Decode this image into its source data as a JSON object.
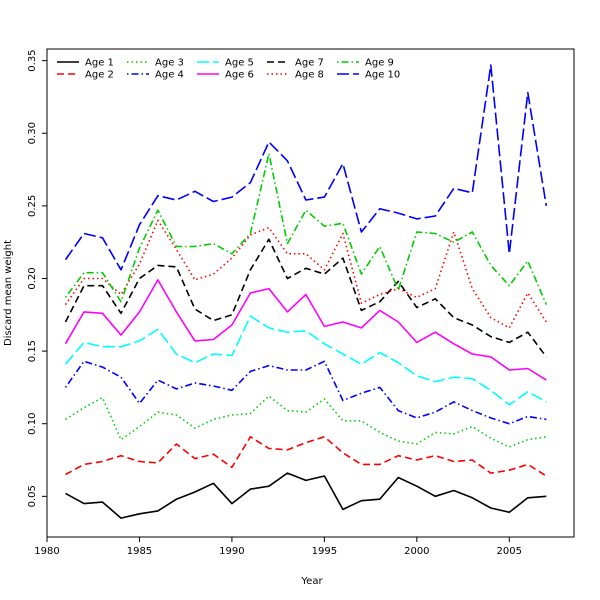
{
  "chart_data": {
    "type": "line",
    "title": "",
    "xlabel": "Year",
    "ylabel": "Discard mean weight",
    "xlim": [
      1980,
      2008.5
    ],
    "ylim": [
      0.022,
      0.358
    ],
    "xticks": [
      "1980",
      "1985",
      "1990",
      "1995",
      "2000",
      "2005"
    ],
    "yticks": [
      "0.05",
      "0.10",
      "0.15",
      "0.20",
      "0.25",
      "0.30",
      "0.35"
    ],
    "legend_placement": "top-left",
    "grid": false,
    "x": [
      1981,
      1982,
      1983,
      1984,
      1985,
      1986,
      1987,
      1988,
      1989,
      1990,
      1991,
      1992,
      1993,
      1994,
      1995,
      1996,
      1997,
      1998,
      1999,
      2000,
      2001,
      2002,
      2003,
      2004,
      2005,
      2006,
      2007
    ],
    "series": [
      {
        "name": "Age 1",
        "color": "#000000",
        "dash": "solid",
        "values": [
          0.052,
          0.045,
          0.046,
          0.035,
          0.038,
          0.04,
          0.048,
          0.053,
          0.059,
          0.045,
          0.055,
          0.057,
          0.066,
          0.061,
          0.064,
          0.041,
          0.047,
          0.048,
          0.063,
          0.057,
          0.05,
          0.054,
          0.049,
          0.042,
          0.039,
          0.049,
          0.05
        ]
      },
      {
        "name": "Age 2",
        "color": "#ff0000",
        "dash": "dashed",
        "values": [
          0.065,
          0.072,
          0.074,
          0.078,
          0.074,
          0.073,
          0.086,
          0.076,
          0.079,
          0.07,
          0.091,
          0.083,
          0.082,
          0.087,
          0.091,
          0.08,
          0.072,
          0.072,
          0.078,
          0.075,
          0.078,
          0.074,
          0.075,
          0.066,
          0.068,
          0.072,
          0.064
        ]
      },
      {
        "name": "Age 3",
        "color": "#00cd00",
        "dash": "dotted",
        "values": [
          0.103,
          0.111,
          0.118,
          0.089,
          0.098,
          0.108,
          0.106,
          0.097,
          0.103,
          0.106,
          0.107,
          0.119,
          0.109,
          0.108,
          0.117,
          0.102,
          0.102,
          0.094,
          0.088,
          0.086,
          0.094,
          0.093,
          0.098,
          0.09,
          0.084,
          0.089,
          0.091
        ]
      },
      {
        "name": "Age 4",
        "color": "#0000ff",
        "dash": "dotdash",
        "values": [
          0.125,
          0.143,
          0.139,
          0.132,
          0.114,
          0.13,
          0.124,
          0.128,
          0.126,
          0.123,
          0.136,
          0.14,
          0.137,
          0.137,
          0.143,
          0.116,
          0.121,
          0.125,
          0.109,
          0.104,
          0.108,
          0.115,
          0.109,
          0.104,
          0.1,
          0.105,
          0.103
        ]
      },
      {
        "name": "Age 5",
        "color": "#00ffff",
        "dash": "longdash",
        "values": [
          0.141,
          0.156,
          0.153,
          0.153,
          0.157,
          0.165,
          0.148,
          0.142,
          0.148,
          0.147,
          0.174,
          0.166,
          0.163,
          0.164,
          0.155,
          0.148,
          0.141,
          0.149,
          0.142,
          0.133,
          0.129,
          0.132,
          0.131,
          0.123,
          0.113,
          0.122,
          0.115
        ]
      },
      {
        "name": "Age 6",
        "color": "#ff00ff",
        "dash": "solid",
        "values": [
          0.155,
          0.177,
          0.176,
          0.161,
          0.177,
          0.199,
          0.177,
          0.157,
          0.158,
          0.168,
          0.19,
          0.193,
          0.177,
          0.189,
          0.167,
          0.17,
          0.166,
          0.178,
          0.17,
          0.156,
          0.163,
          0.155,
          0.148,
          0.146,
          0.137,
          0.138,
          0.13
        ]
      },
      {
        "name": "Age 7",
        "color": "#000000",
        "dash": "dashed",
        "values": [
          0.17,
          0.195,
          0.195,
          0.176,
          0.2,
          0.209,
          0.208,
          0.179,
          0.171,
          0.175,
          0.206,
          0.227,
          0.2,
          0.207,
          0.203,
          0.214,
          0.178,
          0.184,
          0.198,
          0.18,
          0.186,
          0.173,
          0.168,
          0.16,
          0.156,
          0.163,
          0.146
        ]
      },
      {
        "name": "Age 8",
        "color": "#ff0000",
        "dash": "dotted",
        "values": [
          0.182,
          0.2,
          0.2,
          0.189,
          0.21,
          0.24,
          0.22,
          0.199,
          0.203,
          0.214,
          0.23,
          0.235,
          0.217,
          0.217,
          0.206,
          0.231,
          0.183,
          0.189,
          0.193,
          0.187,
          0.193,
          0.232,
          0.193,
          0.173,
          0.166,
          0.19,
          0.17
        ]
      },
      {
        "name": "Age 9",
        "color": "#00cd00",
        "dash": "dotdash",
        "values": [
          0.187,
          0.204,
          0.204,
          0.184,
          0.221,
          0.247,
          0.222,
          0.222,
          0.224,
          0.217,
          0.231,
          0.286,
          0.224,
          0.247,
          0.236,
          0.238,
          0.203,
          0.222,
          0.192,
          0.232,
          0.231,
          0.225,
          0.232,
          0.209,
          0.195,
          0.212,
          0.182
        ]
      },
      {
        "name": "Age 10",
        "color": "#0000ff",
        "dash": "longdash",
        "values": [
          0.213,
          0.231,
          0.228,
          0.206,
          0.237,
          0.257,
          0.254,
          0.26,
          0.253,
          0.256,
          0.266,
          0.294,
          0.281,
          0.254,
          0.256,
          0.279,
          0.232,
          0.248,
          0.245,
          0.241,
          0.243,
          0.262,
          0.259,
          0.347,
          0.217,
          0.328,
          0.25
        ]
      }
    ]
  }
}
